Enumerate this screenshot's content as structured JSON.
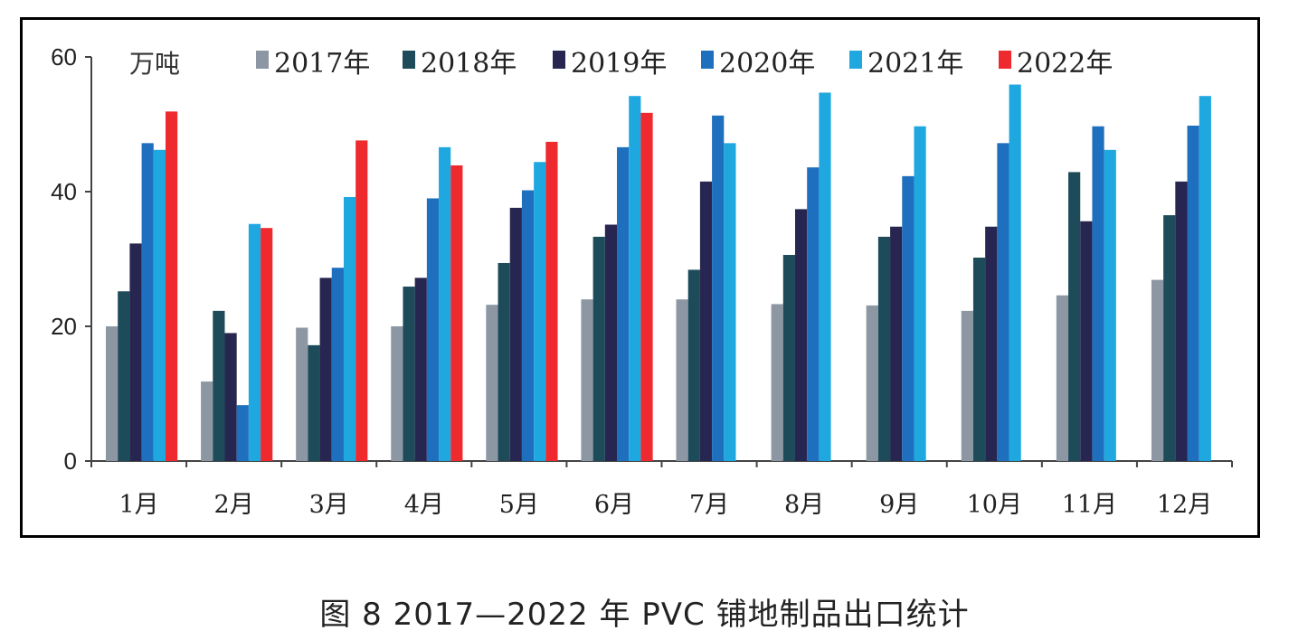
{
  "caption": "图 8  2017—2022 年 PVC 铺地制品出口统计",
  "chart_data": {
    "type": "bar",
    "unit": "万吨",
    "categories": [
      "1月",
      "2月",
      "3月",
      "4月",
      "5月",
      "6月",
      "7月",
      "8月",
      "9月",
      "10月",
      "11月",
      "12月"
    ],
    "ylim": [
      0,
      60
    ],
    "yticks": [
      0,
      20,
      40,
      60
    ],
    "legend_position": "top",
    "grid": false,
    "series": [
      {
        "name": "2017年",
        "color": "#8c97a3",
        "values": [
          20.0,
          11.8,
          19.8,
          20.0,
          23.2,
          24.0,
          24.0,
          23.3,
          23.1,
          22.3,
          24.6,
          26.9
        ]
      },
      {
        "name": "2018年",
        "color": "#1d4b5a",
        "values": [
          25.2,
          22.3,
          17.2,
          25.9,
          29.4,
          33.3,
          28.4,
          30.6,
          33.3,
          30.2,
          42.9,
          36.5
        ]
      },
      {
        "name": "2019年",
        "color": "#272650",
        "values": [
          32.3,
          19.0,
          27.2,
          27.2,
          37.6,
          35.1,
          41.5,
          37.4,
          34.8,
          34.8,
          35.6,
          41.5
        ]
      },
      {
        "name": "2020年",
        "color": "#1f6fbf",
        "values": [
          47.2,
          8.3,
          28.7,
          39.0,
          40.2,
          46.6,
          51.3,
          43.6,
          42.3,
          47.2,
          49.7,
          49.8
        ]
      },
      {
        "name": "2021年",
        "color": "#1fa8e0",
        "values": [
          46.2,
          35.2,
          39.2,
          46.6,
          44.4,
          54.2,
          47.2,
          54.7,
          49.7,
          55.9,
          46.2,
          54.2
        ]
      },
      {
        "name": "2022年",
        "color": "#ee2a2e",
        "values": [
          51.9,
          34.6,
          47.6,
          43.9,
          47.4,
          51.7,
          null,
          null,
          null,
          null,
          null,
          null
        ]
      }
    ]
  }
}
